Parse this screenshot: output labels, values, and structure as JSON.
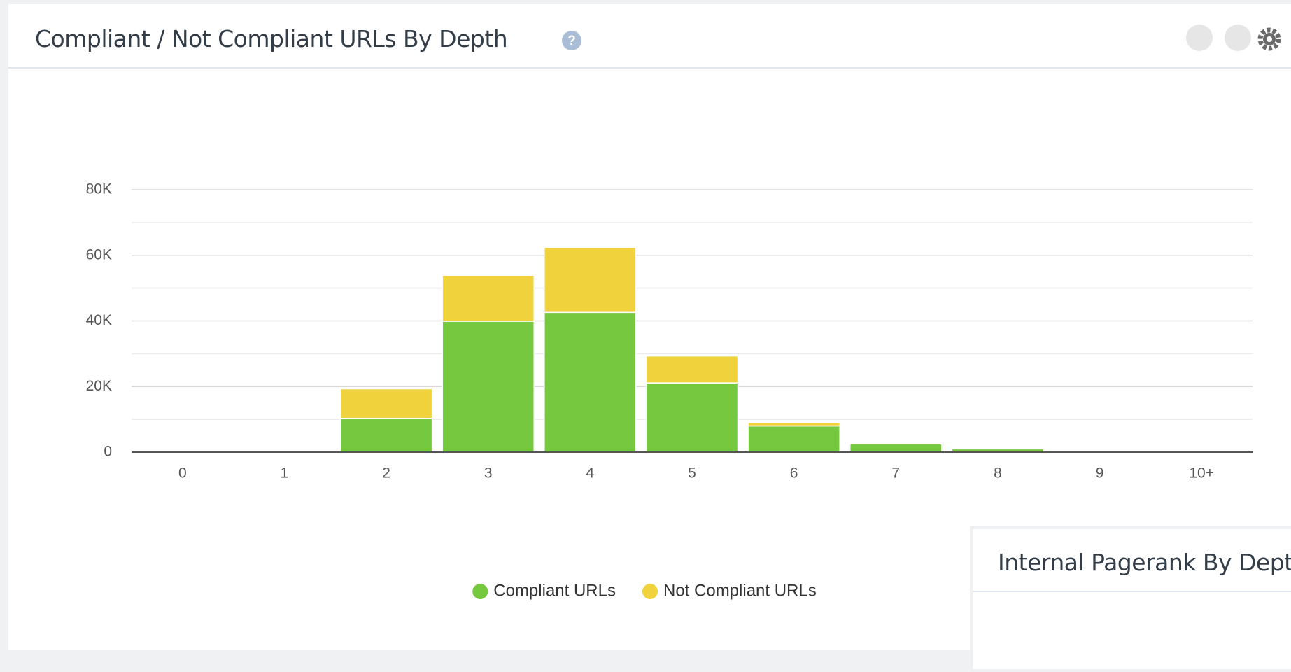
{
  "chart_data": {
    "type": "stacked_bar",
    "title": "Compliant / Not Compliant URLs By Depth",
    "categories": [
      "0",
      "1",
      "2",
      "3",
      "4",
      "5",
      "6",
      "7",
      "8",
      "9",
      "10+"
    ],
    "series": [
      {
        "name": "Compliant URLs",
        "color": "#76c83e",
        "values": [
          0,
          200,
          10300,
          39900,
          42600,
          21100,
          8000,
          2500,
          1000,
          0,
          0
        ]
      },
      {
        "name": "Not Compliant URLs",
        "color": "#f0d23c",
        "values": [
          0,
          100,
          9000,
          14000,
          19800,
          8200,
          1000,
          200,
          100,
          0,
          0
        ]
      }
    ],
    "ylim": [
      0,
      80000
    ],
    "yticks": [
      0,
      {
        "value": 20000,
        "label": "20K"
      },
      {
        "value": 40000,
        "label": "40K"
      },
      {
        "value": 60000,
        "label": "60K"
      },
      {
        "value": 80000,
        "label": "80K"
      }
    ],
    "minor_yticks": [
      10000,
      30000,
      50000,
      70000
    ],
    "grid": true,
    "legend": "bottom"
  },
  "second_panel": {
    "title": "Internal Pagerank By Depth"
  }
}
